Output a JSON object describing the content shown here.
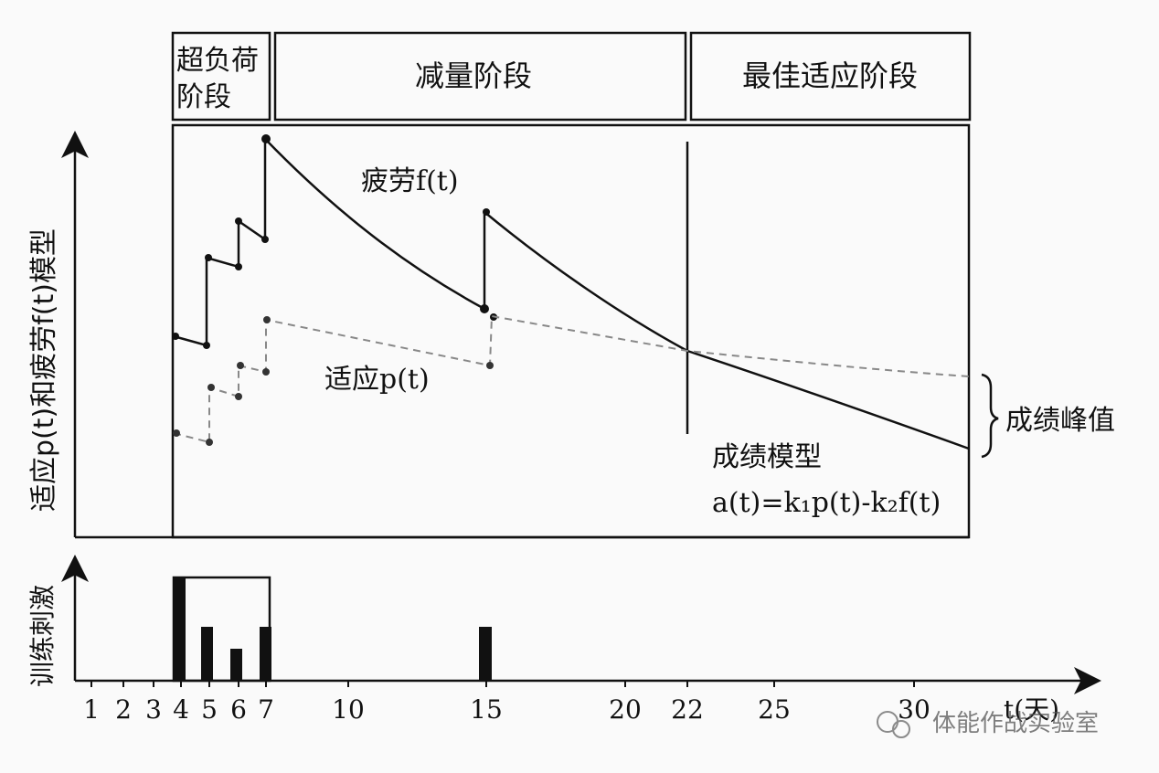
{
  "phases": [
    {
      "line1": "超负荷",
      "line2": "阶段"
    },
    {
      "line1": "减量阶段",
      "line2": ""
    },
    {
      "line1": "最佳适应阶段",
      "line2": ""
    }
  ],
  "y_axis_label": "适应p(t)和疲劳f(t)模型",
  "bottom_y_label": "训练刺激",
  "x_axis_unit": "t(天)",
  "x_ticks": [
    "1",
    "2",
    "3",
    "4",
    "5",
    "6",
    "7",
    "10",
    "15",
    "20",
    "22",
    "25",
    "30"
  ],
  "fatigue_label": "疲劳f(t)",
  "adaptation_label": "适应p(t)",
  "peak_label": "成绩峰值",
  "model_title": "成绩模型",
  "model_formula": "a(t)=k₁p(t)-k₂f(t)",
  "watermark": "体能作战实验室",
  "colors": {
    "line": "#111111",
    "dashed": "#888888",
    "background": "#fafafa"
  }
}
